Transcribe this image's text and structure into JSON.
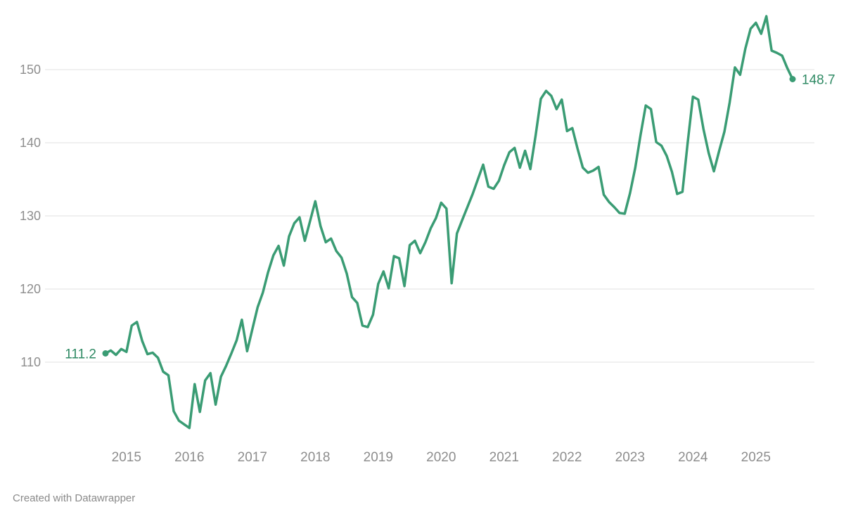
{
  "chart_data": {
    "type": "line",
    "title": "",
    "line_color": "#3a9c74",
    "label_color": "#2f8a64",
    "axis_color": "#8d8d8d",
    "grid_color": "#e2e2e2",
    "start_label": "111.2",
    "end_label": "148.7",
    "start_value": 111.2,
    "end_value": 148.7,
    "x_start": "2014-09",
    "x_end": "2025-08",
    "frequency": "monthly",
    "x_tick_labels": [
      "2015",
      "2016",
      "2017",
      "2018",
      "2019",
      "2020",
      "2021",
      "2022",
      "2023",
      "2024",
      "2025"
    ],
    "y_tick_labels": [
      "110",
      "120",
      "130",
      "140",
      "150"
    ],
    "y_ticks": [
      110,
      120,
      130,
      140,
      150
    ],
    "ylim": [
      98.5,
      158.5
    ],
    "grid": true,
    "legend": "none",
    "values": [
      111.2,
      111.6,
      111.0,
      111.8,
      111.4,
      115.0,
      115.5,
      112.9,
      111.1,
      111.3,
      110.6,
      108.7,
      108.2,
      103.3,
      102.0,
      101.5,
      101.0,
      107.0,
      103.2,
      107.5,
      108.5,
      104.2,
      108.0,
      109.5,
      111.2,
      113.0,
      115.8,
      111.5,
      114.5,
      117.5,
      119.5,
      122.3,
      124.6,
      125.9,
      123.2,
      127.2,
      129.0,
      129.8,
      126.6,
      129.3,
      132.0,
      128.6,
      126.4,
      126.9,
      125.2,
      124.3,
      122.1,
      118.9,
      118.1,
      115.0,
      114.8,
      116.5,
      120.7,
      122.4,
      120.1,
      124.5,
      124.2,
      120.4,
      126.0,
      126.6,
      124.9,
      126.4,
      128.3,
      129.7,
      131.8,
      131.0,
      120.8,
      127.6,
      129.4,
      131.2,
      133.0,
      135.0,
      137.0,
      134.0,
      133.7,
      134.8,
      136.9,
      138.7,
      139.3,
      136.6,
      138.9,
      136.4,
      141.0,
      146.0,
      147.1,
      146.4,
      144.6,
      145.9,
      141.6,
      142.0,
      139.2,
      136.6,
      135.9,
      136.2,
      136.7,
      132.9,
      131.9,
      131.2,
      130.4,
      130.3,
      133.1,
      136.6,
      141.0,
      145.1,
      144.6,
      140.1,
      139.6,
      138.2,
      136.0,
      133.0,
      133.3,
      140.0,
      146.3,
      145.9,
      141.9,
      138.6,
      136.1,
      138.9,
      141.5,
      145.5,
      150.3,
      149.3,
      152.9,
      155.6,
      156.4,
      154.9,
      157.3,
      152.6,
      152.3,
      151.9,
      150.2,
      148.7
    ]
  },
  "footer": {
    "credit": "Created with Datawrapper"
  }
}
